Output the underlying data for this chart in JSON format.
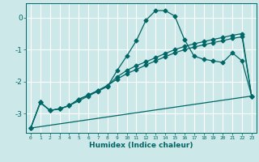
{
  "xlabel": "Humidex (Indice chaleur)",
  "background_color": "#cce8e8",
  "grid_color": "#ffffff",
  "line_color": "#006666",
  "xlim": [
    -0.5,
    23.5
  ],
  "ylim": [
    -3.6,
    0.45
  ],
  "yticks": [
    0,
    -1,
    -2,
    -3
  ],
  "xticks": [
    0,
    1,
    2,
    3,
    4,
    5,
    6,
    7,
    8,
    9,
    10,
    11,
    12,
    13,
    14,
    15,
    16,
    17,
    18,
    19,
    20,
    21,
    22,
    23
  ],
  "series1_x": [
    0,
    1,
    2,
    3,
    4,
    5,
    6,
    7,
    8,
    9,
    10,
    11,
    12,
    13,
    14,
    15,
    16,
    17,
    18,
    19,
    20,
    21,
    22,
    23
  ],
  "series1_y": [
    -3.45,
    -2.65,
    -2.9,
    -2.85,
    -2.75,
    -2.6,
    -2.45,
    -2.3,
    -2.15,
    -1.65,
    -1.2,
    -0.72,
    -0.08,
    0.22,
    0.22,
    0.05,
    -0.68,
    -1.2,
    -1.3,
    -1.35,
    -1.4,
    -1.1,
    -1.35,
    -2.45
  ],
  "series2_x": [
    0,
    1,
    2,
    3,
    4,
    5,
    6,
    7,
    8,
    9,
    10,
    11,
    12,
    13,
    14,
    15,
    16,
    17,
    18,
    19,
    20,
    21,
    22,
    23
  ],
  "series2_y": [
    -3.45,
    -2.65,
    -2.9,
    -2.85,
    -2.75,
    -2.55,
    -2.42,
    -2.28,
    -2.12,
    -1.85,
    -1.65,
    -1.5,
    -1.38,
    -1.25,
    -1.12,
    -1.0,
    -0.9,
    -0.82,
    -0.75,
    -0.68,
    -0.62,
    -0.55,
    -0.5,
    -2.45
  ],
  "series3_x": [
    0,
    1,
    2,
    3,
    4,
    5,
    6,
    7,
    8,
    9,
    10,
    11,
    12,
    13,
    14,
    15,
    16,
    17,
    18,
    19,
    20,
    21,
    22,
    23
  ],
  "series3_y": [
    -3.45,
    -2.65,
    -2.9,
    -2.85,
    -2.75,
    -2.55,
    -2.42,
    -2.28,
    -2.12,
    -1.92,
    -1.75,
    -1.62,
    -1.48,
    -1.35,
    -1.22,
    -1.1,
    -1.0,
    -0.92,
    -0.85,
    -0.78,
    -0.72,
    -0.65,
    -0.6,
    -2.45
  ],
  "series4_x": [
    0,
    23
  ],
  "series4_y": [
    -3.45,
    -2.45
  ]
}
